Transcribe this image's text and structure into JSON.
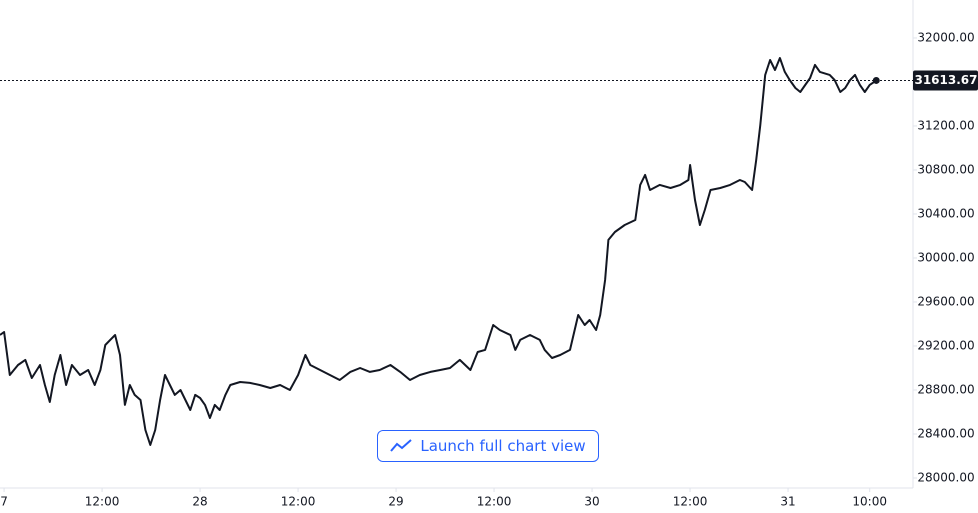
{
  "chart_data": {
    "type": "line",
    "color": "#131722",
    "xlim": [
      -0.5,
      111.3
    ],
    "ylim": [
      27909,
      32345
    ],
    "xticks": [
      {
        "value": 0,
        "label": "7"
      },
      {
        "value": 12,
        "label": "12:00"
      },
      {
        "value": 24,
        "label": "28"
      },
      {
        "value": 36,
        "label": "12:00"
      },
      {
        "value": 48,
        "label": "29"
      },
      {
        "value": 60,
        "label": "12:00"
      },
      {
        "value": 72,
        "label": "30"
      },
      {
        "value": 84,
        "label": "12:00"
      },
      {
        "value": 96,
        "label": "31"
      },
      {
        "value": 106,
        "label": "10:00"
      }
    ],
    "yticks": [
      {
        "value": 28000,
        "label": "28000.00"
      },
      {
        "value": 28400,
        "label": "28400.00"
      },
      {
        "value": 28800,
        "label": "28800.00"
      },
      {
        "value": 29200,
        "label": "29200.00"
      },
      {
        "value": 29600,
        "label": "29600.00"
      },
      {
        "value": 30000,
        "label": "30000.00"
      },
      {
        "value": 30400,
        "label": "30400.00"
      },
      {
        "value": 30800,
        "label": "30800.00"
      },
      {
        "value": 31200,
        "label": "31200.00"
      },
      {
        "value": 31600,
        "label": "31600.00"
      },
      {
        "value": 32000,
        "label": "32000.00"
      }
    ],
    "last_price": 31613.67,
    "x": [
      -0.5,
      0,
      0.7,
      1.7,
      2.6,
      3.4,
      4.4,
      5,
      5.6,
      6.2,
      6.9,
      7.6,
      8.3,
      9.3,
      10.3,
      11.1,
      11.8,
      12.4,
      13,
      13.6,
      14.2,
      14.8,
      15.4,
      16,
      16.7,
      17.3,
      17.9,
      18.5,
      19.1,
      19.7,
      20.3,
      20.9,
      21.6,
      22.2,
      22.8,
      23.4,
      24,
      24.6,
      25.2,
      25.8,
      26.4,
      27.1,
      27.7,
      28.9,
      30.1,
      31.3,
      32.6,
      33.8,
      35,
      36,
      36.9,
      37.5,
      38.7,
      39.9,
      41.1,
      42.4,
      43.6,
      44.8,
      46,
      47.3,
      48.5,
      49.7,
      50.9,
      52.2,
      53.4,
      54.6,
      55.8,
      57.1,
      58,
      58.9,
      59.9,
      60.7,
      62,
      62.6,
      63.2,
      64.4,
      65.6,
      66.2,
      67.1,
      68.1,
      69.3,
      70.3,
      71.1,
      71.7,
      72.5,
      73,
      73.6,
      74,
      74.8,
      76,
      77.3,
      77.9,
      78.5,
      79.1,
      80.3,
      81.6,
      82.8,
      83.8,
      84,
      84.6,
      85.2,
      85.8,
      86.5,
      87.7,
      88.9,
      90.1,
      90.7,
      91.6,
      92.1,
      92.6,
      93.2,
      93.8,
      94.4,
      95,
      95.6,
      96.2,
      96.9,
      97.5,
      98.7,
      99.3,
      99.9,
      101.1,
      101.7,
      102.4,
      103,
      103.6,
      104.2,
      104.8,
      105.4,
      106,
      106.8
    ],
    "values": [
      29300,
      29327,
      28936,
      29027,
      29073,
      28909,
      29027,
      28845,
      28691,
      28936,
      29118,
      28845,
      29027,
      28936,
      28982,
      28845,
      28982,
      29209,
      29255,
      29300,
      29118,
      28664,
      28845,
      28755,
      28709,
      28436,
      28300,
      28436,
      28709,
      28936,
      28845,
      28755,
      28800,
      28709,
      28618,
      28755,
      28727,
      28664,
      28545,
      28664,
      28618,
      28755,
      28845,
      28873,
      28864,
      28845,
      28818,
      28845,
      28800,
      28936,
      29118,
      29027,
      28982,
      28936,
      28891,
      28964,
      29000,
      28964,
      28982,
      29027,
      28964,
      28891,
      28936,
      28964,
      28982,
      29000,
      29073,
      28982,
      29145,
      29164,
      29391,
      29345,
      29300,
      29164,
      29255,
      29300,
      29255,
      29164,
      29091,
      29118,
      29164,
      29482,
      29391,
      29436,
      29345,
      29482,
      29800,
      30164,
      30236,
      30300,
      30345,
      30664,
      30755,
      30618,
      30664,
      30636,
      30664,
      30709,
      30845,
      30527,
      30300,
      30436,
      30618,
      30636,
      30664,
      30709,
      30691,
      30618,
      30891,
      31209,
      31664,
      31800,
      31709,
      31818,
      31691,
      31618,
      31545,
      31509,
      31636,
      31755,
      31691,
      31664,
      31618,
      31509,
      31545,
      31618,
      31664,
      31573,
      31509,
      31573,
      31613.67
    ]
  },
  "button": {
    "label": "Launch full chart view"
  }
}
